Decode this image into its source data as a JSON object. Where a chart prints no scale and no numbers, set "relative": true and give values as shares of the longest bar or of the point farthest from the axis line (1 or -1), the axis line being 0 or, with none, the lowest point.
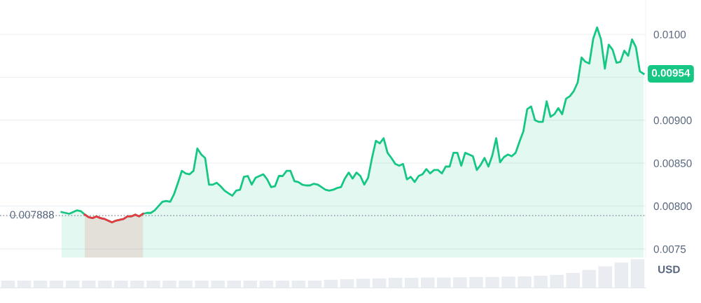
{
  "chart_data": [
    {
      "type": "area",
      "categories": [
        null,
        null,
        null,
        null,
        null,
        null,
        null,
        null,
        null,
        null,
        null,
        null,
        null,
        null,
        null,
        null,
        null,
        null,
        null,
        null,
        null,
        null,
        null,
        null,
        null,
        null,
        null,
        null,
        null,
        null,
        null,
        null,
        null,
        null,
        null,
        null,
        null,
        null,
        null,
        null,
        null,
        null,
        null,
        null,
        null,
        null,
        null,
        null,
        null,
        null,
        null,
        null,
        null,
        null,
        null,
        null,
        null,
        null,
        null,
        null,
        null,
        null,
        null,
        null,
        null,
        null,
        null,
        null,
        null,
        null,
        null,
        null,
        null,
        null,
        null,
        null,
        null,
        null,
        null,
        null,
        null,
        null,
        null,
        null,
        null,
        null,
        null,
        null,
        null,
        null,
        null,
        null,
        null,
        null,
        null,
        null,
        null,
        null,
        null,
        null,
        null,
        null,
        null,
        null,
        null,
        null,
        null,
        null,
        null,
        null,
        null,
        null,
        null,
        null,
        null,
        null,
        null,
        null,
        null,
        null,
        null,
        null,
        null,
        null,
        null,
        null,
        null,
        null,
        null,
        null,
        null,
        null,
        null,
        null,
        null,
        null,
        null,
        null,
        null,
        null,
        null,
        null,
        null,
        null,
        null,
        null,
        null,
        null,
        null,
        null,
        null
      ],
      "series": [
        {
          "color": "#16c784",
          "values": [
            0.00793,
            0.00792,
            0.00791,
            0.00793,
            0.00795,
            0.00794,
            0.0079,
            0.00787,
            0.00786,
            0.00788,
            0.00786,
            0.00785,
            0.00783,
            0.00781,
            0.00783,
            0.00784,
            0.00785,
            0.00788,
            0.00788,
            0.0079,
            0.00788,
            0.00791,
            0.00792,
            0.00792,
            0.00795,
            0.008,
            0.00805,
            0.00806,
            0.00805,
            0.00814,
            0.00827,
            0.00841,
            0.00838,
            0.00837,
            0.00841,
            0.00867,
            0.0086,
            0.00856,
            0.00825,
            0.00825,
            0.00827,
            0.00823,
            0.00818,
            0.00815,
            0.00812,
            0.00818,
            0.00819,
            0.00834,
            0.00835,
            0.00825,
            0.00833,
            0.00835,
            0.00837,
            0.00831,
            0.00822,
            0.00823,
            0.00835,
            0.00835,
            0.00841,
            0.00841,
            0.00829,
            0.00828,
            0.00825,
            0.00824,
            0.00824,
            0.00826,
            0.00825,
            0.00822,
            0.00819,
            0.00818,
            0.00819,
            0.00821,
            0.00822,
            0.00832,
            0.00839,
            0.00832,
            0.00839,
            0.00835,
            0.00825,
            0.00833,
            0.00856,
            0.00876,
            0.00873,
            0.00879,
            0.00862,
            0.00856,
            0.00849,
            0.00847,
            0.00849,
            0.00831,
            0.00834,
            0.00828,
            0.00835,
            0.00837,
            0.00843,
            0.00838,
            0.00842,
            0.00842,
            0.00838,
            0.00846,
            0.00846,
            0.00862,
            0.00862,
            0.00847,
            0.00862,
            0.0086,
            0.00858,
            0.00842,
            0.00848,
            0.00856,
            0.00846,
            0.00859,
            0.00879,
            0.00851,
            0.00857,
            0.0086,
            0.00858,
            0.00862,
            0.00875,
            0.00887,
            0.00913,
            0.00916,
            0.009,
            0.00898,
            0.00898,
            0.00922,
            0.00904,
            0.00907,
            0.00914,
            0.00907,
            0.00925,
            0.00928,
            0.00934,
            0.00944,
            0.00973,
            0.00968,
            0.00966,
            0.00995,
            0.01008,
            0.00994,
            0.0096,
            0.00988,
            0.00982,
            0.00967,
            0.00968,
            0.00981,
            0.00975,
            0.00994,
            0.00985,
            0.00957,
            0.00954
          ]
        },
        {
          "color": "#ea3943",
          "values": [
            null,
            null,
            null,
            null,
            null,
            null,
            0.0079,
            0.00787,
            0.00786,
            0.00788,
            0.00786,
            0.00785,
            0.00783,
            0.00781,
            0.00783,
            0.00784,
            0.00785,
            0.00788,
            0.00788,
            0.0079,
            0.00788,
            0.00791,
            null,
            null,
            null,
            null,
            null,
            null,
            null,
            null,
            null,
            null,
            null,
            null,
            null,
            null,
            null,
            null,
            null,
            null,
            null,
            null,
            null,
            null,
            null,
            null,
            null,
            null,
            null,
            null,
            null,
            null,
            null,
            null,
            null,
            null,
            null,
            null,
            null,
            null,
            null,
            null,
            null,
            null,
            null,
            null,
            null,
            null,
            null,
            null,
            null,
            null,
            null,
            null,
            null,
            null,
            null,
            null,
            null,
            null,
            null,
            null,
            null,
            null,
            null,
            null,
            null,
            null,
            null,
            null,
            null,
            null,
            null,
            null,
            null,
            null,
            null,
            null,
            null,
            null,
            null,
            null,
            null,
            null,
            null,
            null,
            null,
            null,
            null,
            null,
            null,
            null,
            null,
            null,
            null,
            null,
            null,
            null,
            null,
            null,
            null,
            null,
            null,
            null,
            null,
            null,
            null,
            null,
            null,
            null,
            null,
            null,
            null,
            null,
            null,
            null,
            null,
            null,
            null,
            null,
            null,
            null,
            null,
            null,
            null,
            null,
            null,
            null,
            null,
            null,
            null
          ]
        }
      ],
      "ylim": [
        0.0074,
        0.0104
      ],
      "yticks": [
        {
          "value": 0.0075,
          "label": "0.0075"
        },
        {
          "value": 0.008,
          "label": "0.00800"
        },
        {
          "value": 0.0085,
          "label": "0.00850"
        },
        {
          "value": 0.009,
          "label": "0.00900"
        },
        {
          "value": 0.0095,
          "label": null
        },
        {
          "value": 0.01,
          "label": "0.0100"
        }
      ],
      "ylabel": "USD",
      "grid": "y",
      "ref_lines": [
        {
          "axis": "y",
          "value": 0.007888,
          "label": "0.007888",
          "color": "#a0a7b3",
          "line_style": "dotted"
        }
      ],
      "annotations": [
        "0.00954"
      ]
    },
    {
      "type": "bar",
      "relative": true,
      "categories": [
        null,
        null,
        null,
        null,
        null,
        null,
        null,
        null,
        null,
        null,
        null,
        null,
        null,
        null,
        null,
        null,
        null,
        null,
        null,
        null,
        null,
        null,
        null,
        null,
        null,
        null,
        null,
        null,
        null,
        null,
        null,
        null,
        null,
        null,
        null,
        null,
        null,
        null,
        null,
        null
      ],
      "values": [
        0.25,
        0.25,
        0.25,
        0.25,
        0.25,
        0.25,
        0.25,
        0.25,
        0.25,
        0.25,
        0.25,
        0.25,
        0.25,
        0.25,
        0.25,
        0.25,
        0.25,
        0.25,
        0.25,
        0.25,
        0.28,
        0.3,
        0.32,
        0.33,
        0.35,
        0.35,
        0.36,
        0.36,
        0.37,
        0.38,
        0.38,
        0.39,
        0.4,
        0.42,
        0.45,
        0.52,
        0.62,
        0.75,
        0.88,
        1.0
      ],
      "color": "#e9edf2"
    }
  ]
}
